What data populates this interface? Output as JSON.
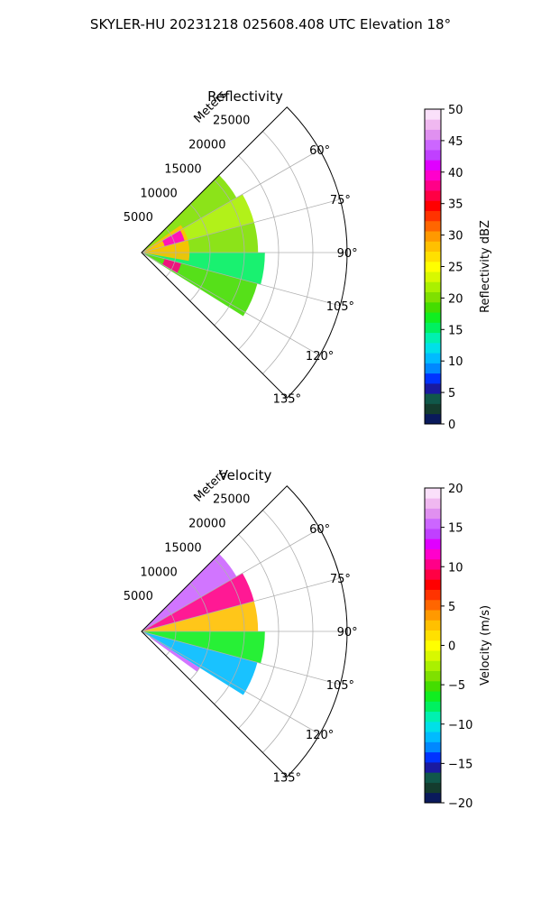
{
  "figure": {
    "suptitle": "SKYLER-HU  20231218  025608.408 UTC Elevation 18°"
  },
  "chart_data": [
    {
      "type": "heatmap",
      "title": "Reflectivity",
      "plot": "polar-sector",
      "theta_range_deg": [
        45,
        135
      ],
      "r_range": [
        0,
        30000
      ],
      "r_axis_label": "Meters",
      "r_ticks": [
        "5000",
        "10000",
        "15000",
        "20000",
        "25000"
      ],
      "theta_ticks": [
        "60°",
        "75°",
        "90°",
        "105°",
        "120°",
        "135°"
      ],
      "grid": true,
      "colorbar": {
        "label": "Reflectivity dBZ",
        "range": [
          0,
          50
        ],
        "ticks": [
          "0",
          "5",
          "10",
          "15",
          "20",
          "25",
          "30",
          "35",
          "40",
          "45",
          "50"
        ],
        "colors": [
          "#0a1a5c",
          "#143c2e",
          "#10584a",
          "#1a1aa0",
          "#0033ff",
          "#0088ff",
          "#00bbff",
          "#00e0e8",
          "#00f0b0",
          "#00f060",
          "#10ee20",
          "#44dd00",
          "#7fe000",
          "#aaf000",
          "#d8f800",
          "#ffff00",
          "#ffe000",
          "#ffc000",
          "#ff9900",
          "#ff6600",
          "#ff3300",
          "#ff0000",
          "#ff0044",
          "#ff0088",
          "#ff00cc",
          "#e000ff",
          "#c040ff",
          "#cc66ff",
          "#e090f0",
          "#f0b8f0",
          "#fae0fa"
        ]
      },
      "echo_regions": [
        {
          "theta": [
            45,
            60
          ],
          "r": [
            0,
            16000
          ],
          "value": 20
        },
        {
          "theta": [
            60,
            75
          ],
          "r": [
            0,
            17000
          ],
          "value": 22
        },
        {
          "theta": [
            75,
            90
          ],
          "r": [
            0,
            17000
          ],
          "value": 20
        },
        {
          "theta": [
            90,
            105
          ],
          "r": [
            0,
            18000
          ],
          "value": 15
        },
        {
          "theta": [
            105,
            122
          ],
          "r": [
            0,
            17500
          ],
          "value": 18
        },
        {
          "theta": [
            55,
            100
          ],
          "r": [
            0,
            7000
          ],
          "value": 28
        },
        {
          "theta": [
            60,
            75
          ],
          "r": [
            3500,
            6500
          ],
          "value": 40
        },
        {
          "theta": [
            105,
            120
          ],
          "r": [
            3500,
            6000
          ],
          "value": 38
        }
      ]
    },
    {
      "type": "heatmap",
      "title": "Velocity",
      "plot": "polar-sector",
      "theta_range_deg": [
        45,
        135
      ],
      "r_range": [
        0,
        30000
      ],
      "r_axis_label": "Meters",
      "r_ticks": [
        "5000",
        "10000",
        "15000",
        "20000",
        "25000"
      ],
      "theta_ticks": [
        "60°",
        "75°",
        "90°",
        "105°",
        "120°",
        "135°"
      ],
      "grid": true,
      "colorbar": {
        "label": "Velocity (m/s)",
        "range": [
          -20,
          20
        ],
        "ticks": [
          "−20",
          "−15",
          "−10",
          "−5",
          "0",
          "5",
          "10",
          "15",
          "20"
        ],
        "colors": [
          "#0a1a5c",
          "#143c2e",
          "#10584a",
          "#1a1aa0",
          "#0033ff",
          "#0088ff",
          "#00bbff",
          "#00e0e8",
          "#00f0b0",
          "#00f060",
          "#10ee20",
          "#44dd00",
          "#7fe000",
          "#aaf000",
          "#d8f800",
          "#ffff00",
          "#ffe000",
          "#ffc000",
          "#ff9900",
          "#ff6600",
          "#ff3300",
          "#ff0000",
          "#ff0044",
          "#ff0088",
          "#ff00cc",
          "#e000ff",
          "#c040ff",
          "#cc66ff",
          "#e090f0",
          "#f0b8f0",
          "#fae0fa"
        ]
      },
      "echo_regions": [
        {
          "theta": [
            45,
            60
          ],
          "r": [
            0,
            16000
          ],
          "value": 15
        },
        {
          "theta": [
            60,
            75
          ],
          "r": [
            0,
            17000
          ],
          "value": 10
        },
        {
          "theta": [
            75,
            90
          ],
          "r": [
            0,
            17000
          ],
          "value": 3
        },
        {
          "theta": [
            90,
            105
          ],
          "r": [
            0,
            18000
          ],
          "value": -6
        },
        {
          "theta": [
            105,
            122
          ],
          "r": [
            0,
            17500
          ],
          "value": -12
        },
        {
          "theta": [
            122,
            126
          ],
          "r": [
            1500,
            10000
          ],
          "value": 15
        }
      ]
    }
  ]
}
